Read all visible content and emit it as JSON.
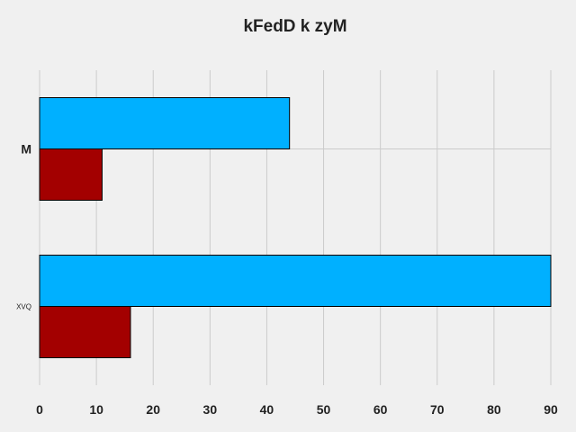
{
  "chart_data": {
    "type": "bar",
    "orientation": "horizontal",
    "title": "kFedD  k zyM",
    "xlabel": "",
    "ylabel": "",
    "xlim": [
      0,
      90
    ],
    "xticks": [
      0,
      10,
      20,
      30,
      40,
      50,
      60,
      70,
      80,
      90
    ],
    "categories": [
      "XVQ",
      "M"
    ],
    "series": [
      {
        "values": [
          90,
          44
        ],
        "color": "#00b0ff"
      },
      {
        "values": [
          16,
          11
        ],
        "color": "#a30000"
      }
    ],
    "grid": true,
    "background": "#f0f0f0"
  }
}
